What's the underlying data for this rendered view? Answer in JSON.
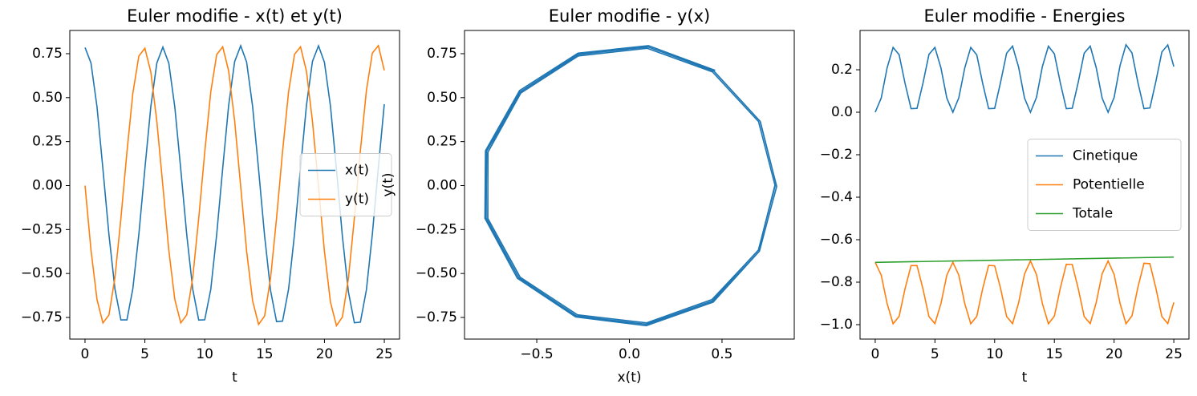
{
  "chart_data": [
    {
      "type": "line",
      "title": "Euler modifie - x(t) et y(t)",
      "xlabel": "t",
      "x": [
        0,
        0.5,
        1,
        1.5,
        2,
        2.5,
        3,
        3.5,
        4,
        4.5,
        5,
        5.5,
        6,
        6.5,
        7,
        7.5,
        8,
        8.5,
        9,
        9.5,
        10,
        10.5,
        11,
        11.5,
        12,
        12.5,
        13,
        13.5,
        14,
        14.5,
        15,
        15.5,
        16,
        16.5,
        17,
        17.5,
        18,
        18.5,
        19,
        19.5,
        20,
        20.5,
        21,
        21.5,
        22,
        22.5,
        23,
        23.5,
        24,
        24.5,
        25
      ],
      "series": [
        {
          "name": "x(t)",
          "color": "#1f77b4",
          "values": [
            0.785,
            0.697,
            0.448,
            0.094,
            -0.279,
            -0.589,
            -0.764,
            -0.764,
            -0.586,
            -0.276,
            0.096,
            0.449,
            0.697,
            0.787,
            0.696,
            0.446,
            0.093,
            -0.281,
            -0.591,
            -0.765,
            -0.763,
            -0.591,
            -0.277,
            0.099,
            0.456,
            0.705,
            0.795,
            0.702,
            0.449,
            0.092,
            -0.285,
            -0.598,
            -0.773,
            -0.771,
            -0.589,
            -0.276,
            0.1,
            0.457,
            0.707,
            0.795,
            0.701,
            0.452,
            0.091,
            -0.29,
            -0.605,
            -0.78,
            -0.777,
            -0.593,
            -0.277,
            0.103,
            0.463
          ]
        },
        {
          "name": "y(t)",
          "color": "#ff7f0e",
          "values": [
            0,
            -0.366,
            -0.648,
            -0.781,
            -0.736,
            -0.522,
            -0.187,
            0.189,
            0.526,
            0.737,
            0.781,
            0.646,
            0.364,
            -0.002,
            -0.368,
            -0.648,
            -0.781,
            -0.735,
            -0.52,
            -0.186,
            0.19,
            0.532,
            0.745,
            0.789,
            0.652,
            0.366,
            -0.004,
            -0.373,
            -0.656,
            -0.789,
            -0.742,
            -0.524,
            -0.186,
            0.194,
            0.533,
            0.746,
            0.789,
            0.65,
            0.364,
            -0.006,
            -0.374,
            -0.663,
            -0.797,
            -0.747,
            -0.527,
            -0.186,
            0.198,
            0.54,
            0.753,
            0.796,
            0.655
          ]
        }
      ],
      "xlim": [
        -1.27,
        26.27
      ],
      "xticks": [
        0,
        5,
        10,
        15,
        20,
        25
      ],
      "ylim": [
        -0.873,
        0.882
      ],
      "yticks": [
        {
          "value": -0.75,
          "label": "−0.75"
        },
        {
          "value": -0.5,
          "label": "−0.50"
        },
        {
          "value": -0.25,
          "label": "−0.25"
        },
        {
          "value": 0,
          "label": "0.00"
        },
        0.25,
        {
          "value": 0.5,
          "label": "0.50"
        },
        0.75
      ],
      "legend": "center right"
    },
    {
      "type": "line",
      "title": "Euler modifie - y(x)",
      "xlabel": "x(t)",
      "ylabel": "y(t)",
      "x": [
        0.785,
        0.697,
        0.448,
        0.094,
        -0.279,
        -0.589,
        -0.764,
        -0.764,
        -0.586,
        -0.276,
        0.096,
        0.449,
        0.697,
        0.787,
        0.696,
        0.446,
        0.093,
        -0.281,
        -0.591,
        -0.765,
        -0.763,
        -0.591,
        -0.277,
        0.099,
        0.456,
        0.705,
        0.795,
        0.702,
        0.449,
        0.092,
        -0.285,
        -0.598,
        -0.773,
        -0.771,
        -0.589,
        -0.276,
        0.1,
        0.457,
        0.707,
        0.795,
        0.701,
        0.452,
        0.091,
        -0.29,
        -0.605,
        -0.78,
        -0.777,
        -0.593,
        -0.277,
        0.103,
        0.463
      ],
      "series": [
        {
          "color": "#1f77b4",
          "values": [
            0,
            -0.366,
            -0.648,
            -0.781,
            -0.736,
            -0.522,
            -0.187,
            0.189,
            0.526,
            0.737,
            0.781,
            0.646,
            0.364,
            -0.002,
            -0.368,
            -0.648,
            -0.781,
            -0.735,
            -0.52,
            -0.186,
            0.19,
            0.532,
            0.745,
            0.789,
            0.652,
            0.366,
            -0.004,
            -0.373,
            -0.656,
            -0.789,
            -0.742,
            -0.524,
            -0.186,
            0.194,
            0.533,
            0.746,
            0.789,
            0.65,
            0.364,
            -0.006,
            -0.374,
            -0.663,
            -0.797,
            -0.747,
            -0.527,
            -0.186,
            0.198,
            0.54,
            0.753,
            0.796,
            0.655
          ]
        }
      ],
      "xlim": [
        -0.89,
        0.89
      ],
      "xticks": [
        {
          "value": -0.5,
          "label": "−0.5"
        },
        {
          "value": 0,
          "label": "0.0"
        },
        0.5
      ],
      "ylim": [
        -0.873,
        0.882
      ],
      "yticks": [
        {
          "value": -0.75,
          "label": "−0.75"
        },
        {
          "value": -0.5,
          "label": "−0.50"
        },
        {
          "value": -0.25,
          "label": "−0.25"
        },
        {
          "value": 0,
          "label": "0.00"
        },
        0.25,
        {
          "value": 0.5,
          "label": "0.50"
        },
        0.75
      ]
    },
    {
      "type": "line",
      "title": "Euler modifie - Energies",
      "xlabel": "t",
      "x": [
        0,
        0.5,
        1,
        1.5,
        2,
        2.5,
        3,
        3.5,
        4,
        4.5,
        5,
        5.5,
        6,
        6.5,
        7,
        7.5,
        8,
        8.5,
        9,
        9.5,
        10,
        10.5,
        11,
        11.5,
        12,
        12.5,
        13,
        13.5,
        14,
        14.5,
        15,
        15.5,
        16,
        16.5,
        17,
        17.5,
        18,
        18.5,
        19,
        19.5,
        20,
        20.5,
        21,
        21.5,
        22,
        22.5,
        23,
        23.5,
        24,
        24.5,
        25
      ],
      "series": [
        {
          "name": "Cinetique",
          "color": "#1f77b4",
          "values": [
            0,
            0.067,
            0.21,
            0.305,
            0.271,
            0.136,
            0.017,
            0.018,
            0.138,
            0.272,
            0.305,
            0.209,
            0.066,
            0,
            0.068,
            0.21,
            0.305,
            0.27,
            0.135,
            0.017,
            0.018,
            0.142,
            0.278,
            0.311,
            0.213,
            0.067,
            0,
            0.07,
            0.215,
            0.311,
            0.275,
            0.137,
            0.017,
            0.019,
            0.142,
            0.278,
            0.311,
            0.211,
            0.066,
            0,
            0.07,
            0.22,
            0.318,
            0.279,
            0.139,
            0.017,
            0.02,
            0.146,
            0.284,
            0.317,
            0.215
          ]
        },
        {
          "name": "Potentielle",
          "color": "#ff7f0e",
          "values": [
            -0.707,
            -0.767,
            -0.901,
            -0.996,
            -0.961,
            -0.831,
            -0.722,
            -0.722,
            -0.833,
            -0.962,
            -0.995,
            -0.901,
            -0.767,
            -0.706,
            -0.767,
            -0.902,
            -0.996,
            -0.961,
            -0.83,
            -0.721,
            -0.723,
            -0.83,
            -0.962,
            -0.995,
            -0.898,
            -0.762,
            -0.7,
            -0.764,
            -0.901,
            -0.996,
            -0.96,
            -0.827,
            -0.716,
            -0.717,
            -0.831,
            -0.962,
            -0.995,
            -0.897,
            -0.76,
            -0.7,
            -0.764,
            -0.9,
            -0.996,
            -0.958,
            -0.823,
            -0.711,
            -0.713,
            -0.829,
            -0.962,
            -0.995,
            -0.895
          ]
        },
        {
          "name": "Totale",
          "color": "#2ca02c",
          "x": [
            0,
            25
          ],
          "values": [
            -0.707,
            -0.682
          ]
        }
      ],
      "xlim": [
        -1.27,
        26.27
      ],
      "xticks": [
        0,
        5,
        10,
        15,
        20,
        25
      ],
      "ylim": [
        -1.068,
        0.385
      ],
      "yticks": [
        {
          "value": -1,
          "label": "−1.0"
        },
        {
          "value": -0.8,
          "label": "−0.8"
        },
        {
          "value": -0.6,
          "label": "−0.6"
        },
        {
          "value": -0.4,
          "label": "−0.4"
        },
        {
          "value": -0.2,
          "label": "−0.2"
        },
        {
          "value": 0,
          "label": "0.0"
        },
        0.2
      ],
      "legend": "center right"
    }
  ]
}
